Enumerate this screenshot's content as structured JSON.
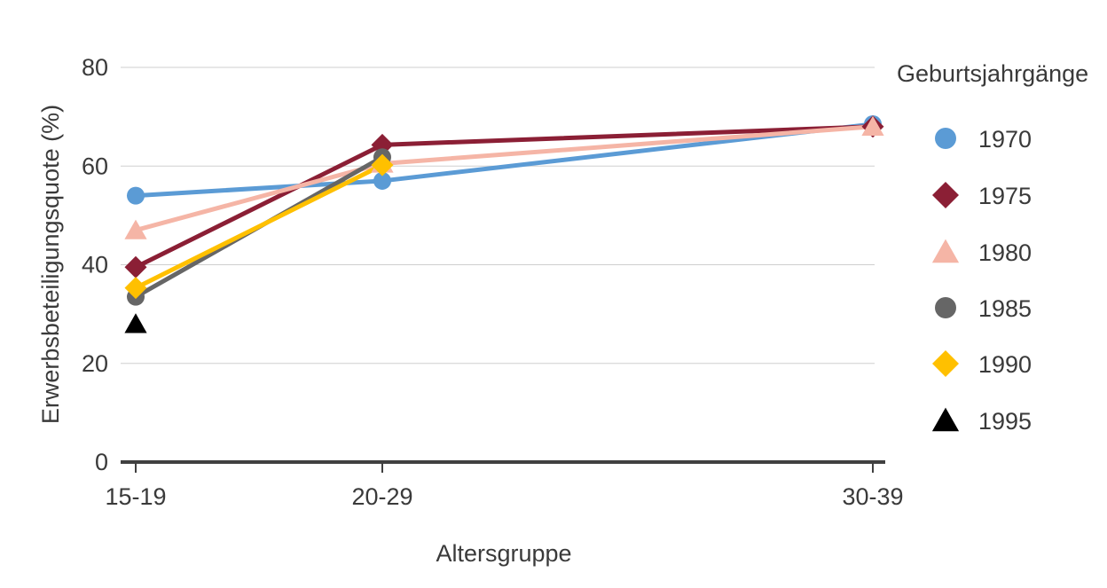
{
  "chart_data": {
    "type": "line",
    "title": "",
    "xlabel": "Altersgruppe",
    "ylabel": "Erwerbsbeteiligungsquote (%)",
    "categories": [
      "15-19",
      "20-29",
      "30-39"
    ],
    "ylim": [
      0,
      80
    ],
    "yticks": [
      0,
      20,
      40,
      60,
      80
    ],
    "grid": true,
    "legend": {
      "title": "Geburtsjahrgänge",
      "position": "right"
    },
    "series": [
      {
        "name": "1970",
        "color": "#5b9bd5",
        "marker": "circle",
        "values": [
          54,
          57,
          68.5
        ]
      },
      {
        "name": "1975",
        "color": "#8b1f35",
        "marker": "diamond",
        "values": [
          39.5,
          64.3,
          68
        ]
      },
      {
        "name": "1980",
        "color": "#f5b5a6",
        "marker": "triangle",
        "values": [
          47,
          60.5,
          68
        ]
      },
      {
        "name": "1985",
        "color": "#666666",
        "marker": "circle",
        "values": [
          33.5,
          61.8,
          null
        ]
      },
      {
        "name": "1990",
        "color": "#ffc000",
        "marker": "diamond",
        "values": [
          35.3,
          60.2,
          null
        ]
      },
      {
        "name": "1995",
        "color": "#000000",
        "marker": "triangle",
        "values": [
          28,
          null,
          null
        ]
      }
    ]
  }
}
